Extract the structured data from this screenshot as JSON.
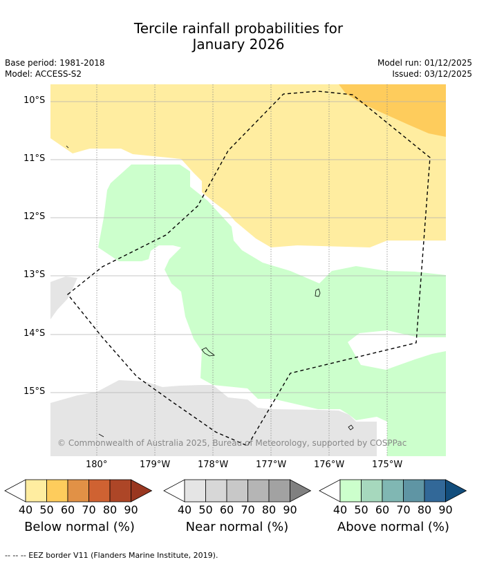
{
  "title": {
    "line1": "Tercile rainfall probabilities for",
    "line2": "January 2026"
  },
  "meta": {
    "base_period": "Base period: 1981-2018",
    "model": "Model: ACCESS-S2",
    "model_run": "Model run: 01/12/2025",
    "issued": "Issued: 03/12/2025"
  },
  "map": {
    "lat_labels": [
      "10°S",
      "11°S",
      "12°S",
      "13°S",
      "14°S",
      "15°S"
    ],
    "lon_labels": [
      "180°",
      "179°W",
      "178°W",
      "177°W",
      "176°W",
      "175°W"
    ],
    "copyright": "© Commonwealth of Australia 2025, Bureau of Meteorology, supported by COSPPac",
    "colors": {
      "below_40": "#ffeda0",
      "below_50": "#fecc5c",
      "near_40": "#e5e5e5",
      "above_40": "#ccffcc"
    }
  },
  "legends": [
    {
      "label": "Below normal (%)",
      "ticks": [
        "40",
        "50",
        "60",
        "70",
        "80",
        "90"
      ],
      "colors": [
        "#ffeda0",
        "#fecc5c",
        "#e19146",
        "#cf6232",
        "#ad4627",
        "#993720"
      ]
    },
    {
      "label": "Near normal (%)",
      "ticks": [
        "40",
        "50",
        "60",
        "70",
        "80",
        "90"
      ],
      "colors": [
        "#e5e5e5",
        "#d7d7d7",
        "#c8c8c8",
        "#b5b5b5",
        "#a2a2a2",
        "#808080"
      ]
    },
    {
      "label": "Above normal (%)",
      "ticks": [
        "40",
        "50",
        "60",
        "70",
        "80",
        "90"
      ],
      "colors": [
        "#ccffcc",
        "#a6d8bd",
        "#80b7b3",
        "#5f95a4",
        "#326898",
        "#124d7c"
      ]
    }
  ],
  "footer": "--  --  -- EEZ border V11 (Flanders Marine Institute, 2019)."
}
